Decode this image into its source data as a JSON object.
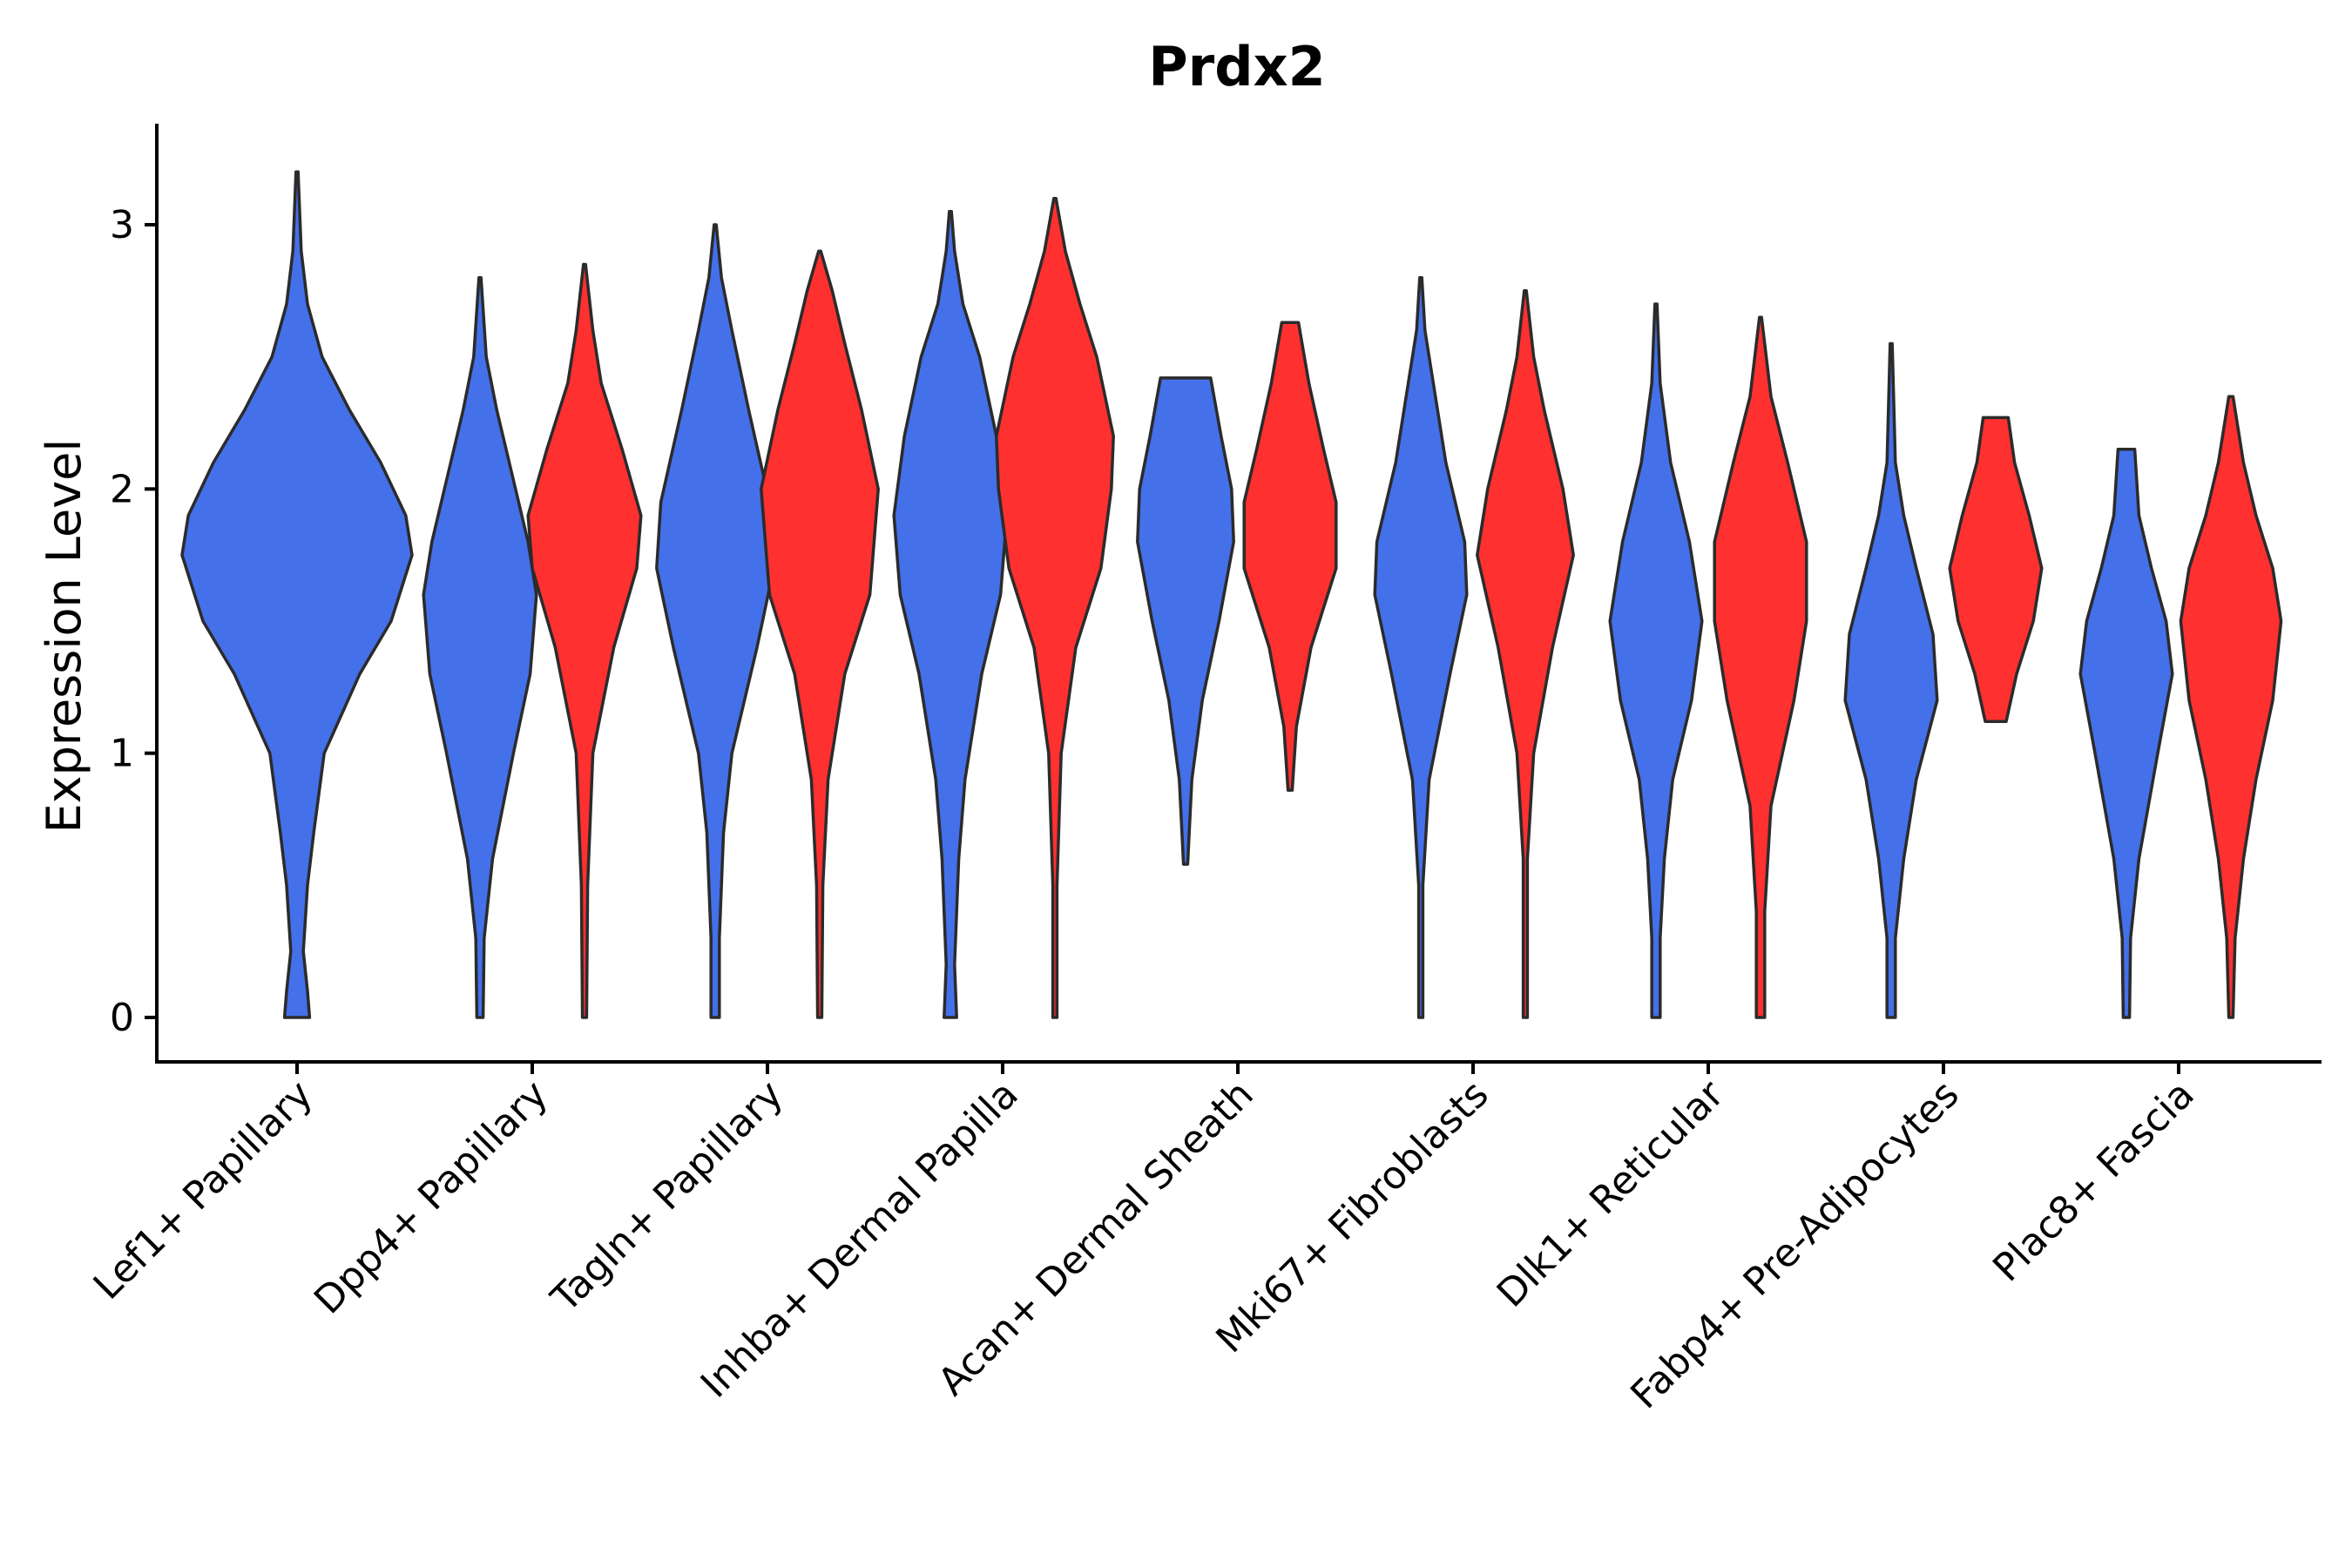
{
  "chart_data": {
    "type": "violin",
    "title": "Prdx2",
    "xlabel": "",
    "ylabel": "Expression Level",
    "ylim": [
      -0.17,
      3.37
    ],
    "yticks": [
      0,
      1,
      2,
      3
    ],
    "colors": {
      "group_a": "#4470EA",
      "group_b": "#FF3030",
      "outline": "#2b2b2b"
    },
    "categories": [
      "Lef1+ Papillary",
      "Dpp4+ Papillary",
      "Tagln+ Papillary",
      "Inhba+ Dermal Papilla",
      "Acan+ Dermal Sheath",
      "Mki67+ Fibroblasts",
      "Dlk1+ Reticular",
      "Fabp4+ Pre-Adipocytes",
      "Plac8+ Fascia"
    ],
    "violins": [
      {
        "category": 0,
        "group": "group_a",
        "min": 0,
        "max": 3.2,
        "half_widths": [
          [
            0,
            0.06
          ],
          [
            0.1,
            0.05
          ],
          [
            0.25,
            0.03
          ],
          [
            0.5,
            0.05
          ],
          [
            0.7,
            0.08
          ],
          [
            1.0,
            0.13
          ],
          [
            1.3,
            0.3
          ],
          [
            1.5,
            0.45
          ],
          [
            1.75,
            0.55
          ],
          [
            1.9,
            0.52
          ],
          [
            2.1,
            0.4
          ],
          [
            2.3,
            0.25
          ],
          [
            2.5,
            0.12
          ],
          [
            2.7,
            0.05
          ],
          [
            2.9,
            0.02
          ],
          [
            3.2,
            0.005
          ]
        ]
      },
      {
        "category": 1,
        "group": "group_a",
        "min": 0,
        "max": 2.8,
        "half_widths": [
          [
            0,
            0.015
          ],
          [
            0.3,
            0.02
          ],
          [
            0.6,
            0.06
          ],
          [
            1.0,
            0.16
          ],
          [
            1.3,
            0.24
          ],
          [
            1.6,
            0.27
          ],
          [
            1.8,
            0.23
          ],
          [
            2.1,
            0.14
          ],
          [
            2.3,
            0.08
          ],
          [
            2.5,
            0.03
          ],
          [
            2.8,
            0.005
          ]
        ]
      },
      {
        "category": 1,
        "group": "group_b",
        "min": 0,
        "max": 2.85,
        "half_widths": [
          [
            0,
            0.01
          ],
          [
            0.5,
            0.015
          ],
          [
            1.0,
            0.04
          ],
          [
            1.4,
            0.14
          ],
          [
            1.7,
            0.25
          ],
          [
            1.9,
            0.27
          ],
          [
            2.15,
            0.18
          ],
          [
            2.4,
            0.08
          ],
          [
            2.6,
            0.04
          ],
          [
            2.85,
            0.005
          ]
        ]
      },
      {
        "category": 2,
        "group": "group_a",
        "min": 0,
        "max": 3.0,
        "half_widths": [
          [
            0,
            0.02
          ],
          [
            0.3,
            0.02
          ],
          [
            0.7,
            0.04
          ],
          [
            1.0,
            0.08
          ],
          [
            1.4,
            0.2
          ],
          [
            1.7,
            0.28
          ],
          [
            1.95,
            0.26
          ],
          [
            2.3,
            0.16
          ],
          [
            2.6,
            0.08
          ],
          [
            2.8,
            0.03
          ],
          [
            3.0,
            0.005
          ]
        ]
      },
      {
        "category": 2,
        "group": "group_b",
        "min": 0,
        "max": 2.9,
        "half_widths": [
          [
            0,
            0.01
          ],
          [
            0.5,
            0.015
          ],
          [
            0.9,
            0.04
          ],
          [
            1.3,
            0.12
          ],
          [
            1.6,
            0.24
          ],
          [
            2.0,
            0.28
          ],
          [
            2.3,
            0.2
          ],
          [
            2.55,
            0.12
          ],
          [
            2.75,
            0.06
          ],
          [
            2.9,
            0.005
          ]
        ]
      },
      {
        "category": 3,
        "group": "group_a",
        "min": 0,
        "max": 3.05,
        "half_widths": [
          [
            0,
            0.03
          ],
          [
            0.2,
            0.02
          ],
          [
            0.6,
            0.04
          ],
          [
            0.9,
            0.07
          ],
          [
            1.3,
            0.15
          ],
          [
            1.6,
            0.24
          ],
          [
            1.9,
            0.27
          ],
          [
            2.2,
            0.22
          ],
          [
            2.5,
            0.14
          ],
          [
            2.7,
            0.06
          ],
          [
            2.9,
            0.02
          ],
          [
            3.05,
            0.005
          ]
        ]
      },
      {
        "category": 3,
        "group": "group_b",
        "min": 0,
        "max": 3.1,
        "half_widths": [
          [
            0,
            0.01
          ],
          [
            0.5,
            0.01
          ],
          [
            1.0,
            0.03
          ],
          [
            1.4,
            0.1
          ],
          [
            1.7,
            0.22
          ],
          [
            2.0,
            0.27
          ],
          [
            2.2,
            0.28
          ],
          [
            2.5,
            0.2
          ],
          [
            2.7,
            0.12
          ],
          [
            2.9,
            0.05
          ],
          [
            3.1,
            0.005
          ]
        ]
      },
      {
        "category": 4,
        "group": "group_a",
        "min": 0.58,
        "max": 2.42,
        "half_widths": [
          [
            0.58,
            0.01
          ],
          [
            0.9,
            0.03
          ],
          [
            1.2,
            0.08
          ],
          [
            1.5,
            0.16
          ],
          [
            1.8,
            0.23
          ],
          [
            2.0,
            0.22
          ],
          [
            2.2,
            0.17
          ],
          [
            2.42,
            0.12
          ]
        ]
      },
      {
        "category": 4,
        "group": "group_b",
        "min": 0.86,
        "max": 2.63,
        "half_widths": [
          [
            0.86,
            0.01
          ],
          [
            1.1,
            0.03
          ],
          [
            1.4,
            0.1
          ],
          [
            1.7,
            0.22
          ],
          [
            1.95,
            0.22
          ],
          [
            2.15,
            0.16
          ],
          [
            2.4,
            0.09
          ],
          [
            2.63,
            0.04
          ]
        ]
      },
      {
        "category": 5,
        "group": "group_a",
        "min": 0,
        "max": 2.8,
        "half_widths": [
          [
            0,
            0.01
          ],
          [
            0.5,
            0.01
          ],
          [
            0.9,
            0.04
          ],
          [
            1.3,
            0.14
          ],
          [
            1.6,
            0.22
          ],
          [
            1.8,
            0.21
          ],
          [
            2.1,
            0.12
          ],
          [
            2.4,
            0.06
          ],
          [
            2.6,
            0.02
          ],
          [
            2.8,
            0.005
          ]
        ]
      },
      {
        "category": 5,
        "group": "group_b",
        "min": 0,
        "max": 2.75,
        "half_widths": [
          [
            0,
            0.01
          ],
          [
            0.6,
            0.01
          ],
          [
            1.0,
            0.04
          ],
          [
            1.4,
            0.13
          ],
          [
            1.75,
            0.23
          ],
          [
            2.0,
            0.18
          ],
          [
            2.3,
            0.09
          ],
          [
            2.5,
            0.04
          ],
          [
            2.75,
            0.005
          ]
        ]
      },
      {
        "category": 6,
        "group": "group_a",
        "min": 0,
        "max": 2.7,
        "half_widths": [
          [
            0,
            0.02
          ],
          [
            0.3,
            0.02
          ],
          [
            0.6,
            0.04
          ],
          [
            0.9,
            0.08
          ],
          [
            1.2,
            0.17
          ],
          [
            1.5,
            0.22
          ],
          [
            1.8,
            0.16
          ],
          [
            2.1,
            0.07
          ],
          [
            2.4,
            0.02
          ],
          [
            2.7,
            0.005
          ]
        ]
      },
      {
        "category": 6,
        "group": "group_b",
        "min": 0,
        "max": 2.65,
        "half_widths": [
          [
            0,
            0.02
          ],
          [
            0.4,
            0.02
          ],
          [
            0.8,
            0.05
          ],
          [
            1.2,
            0.16
          ],
          [
            1.5,
            0.22
          ],
          [
            1.8,
            0.22
          ],
          [
            2.1,
            0.13
          ],
          [
            2.35,
            0.05
          ],
          [
            2.65,
            0.005
          ]
        ]
      },
      {
        "category": 7,
        "group": "group_a",
        "min": 0,
        "max": 2.55,
        "half_widths": [
          [
            0,
            0.02
          ],
          [
            0.3,
            0.02
          ],
          [
            0.6,
            0.06
          ],
          [
            0.9,
            0.12
          ],
          [
            1.2,
            0.22
          ],
          [
            1.45,
            0.2
          ],
          [
            1.7,
            0.12
          ],
          [
            1.9,
            0.06
          ],
          [
            2.1,
            0.02
          ],
          [
            2.55,
            0.005
          ]
        ]
      },
      {
        "category": 7,
        "group": "group_b",
        "min": 1.12,
        "max": 2.27,
        "half_widths": [
          [
            1.12,
            0.05
          ],
          [
            1.3,
            0.1
          ],
          [
            1.5,
            0.18
          ],
          [
            1.7,
            0.22
          ],
          [
            1.9,
            0.16
          ],
          [
            2.1,
            0.09
          ],
          [
            2.27,
            0.06
          ]
        ]
      },
      {
        "category": 8,
        "group": "group_a",
        "min": 0,
        "max": 2.15,
        "half_widths": [
          [
            0,
            0.015
          ],
          [
            0.3,
            0.02
          ],
          [
            0.6,
            0.06
          ],
          [
            1.0,
            0.15
          ],
          [
            1.3,
            0.22
          ],
          [
            1.5,
            0.19
          ],
          [
            1.7,
            0.12
          ],
          [
            1.9,
            0.06
          ],
          [
            2.15,
            0.04
          ]
        ]
      },
      {
        "category": 8,
        "group": "group_b",
        "min": 0,
        "max": 2.35,
        "half_widths": [
          [
            0,
            0.01
          ],
          [
            0.3,
            0.02
          ],
          [
            0.6,
            0.06
          ],
          [
            0.9,
            0.12
          ],
          [
            1.2,
            0.2
          ],
          [
            1.5,
            0.24
          ],
          [
            1.7,
            0.2
          ],
          [
            1.9,
            0.12
          ],
          [
            2.1,
            0.06
          ],
          [
            2.35,
            0.01
          ]
        ]
      }
    ]
  }
}
